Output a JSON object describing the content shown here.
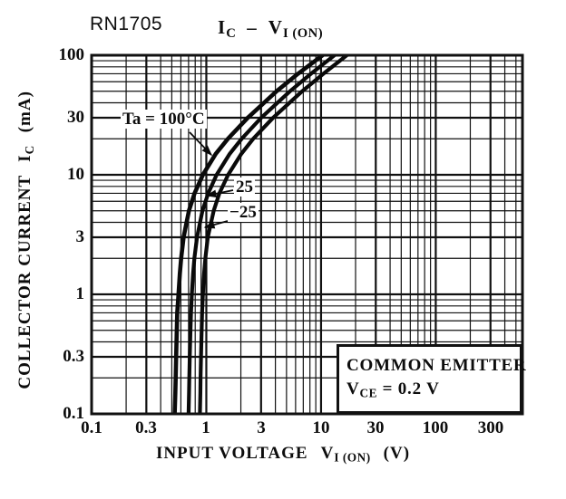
{
  "page": {
    "product_label": "RN1705"
  },
  "title": {
    "p1": "I",
    "p1_sub": "C",
    "dash": "–",
    "p2": "V",
    "p2_sub": "I (ON)"
  },
  "axes": {
    "x": {
      "label_main": "INPUT VOLTAGE",
      "label_sym": "V",
      "label_sym_sub": "I (ON)",
      "label_unit": "(V)",
      "tick_labels": [
        "0.1",
        "0.3",
        "1",
        "3",
        "10",
        "30",
        "100",
        "300"
      ]
    },
    "y": {
      "label_main": "COLLECTOR CURRENT",
      "label_sym": "I",
      "label_sym_sub": "C",
      "label_unit": "(mA)",
      "tick_labels": [
        "100",
        "30",
        "10",
        "3",
        "1",
        "0.3",
        "0.1"
      ]
    }
  },
  "annotations": {
    "ta_label": "Ta = 100°C",
    "t25_label": "25",
    "tm25_label": "−25",
    "box_line1": "COMMON EMITTER",
    "box_sym": "V",
    "box_sym_sub": "CE",
    "box_value": "= 0.2 V"
  },
  "chart_data": {
    "type": "line",
    "title": "IC - VI(ON)",
    "xlabel": "INPUT VOLTAGE VI(ON) (V)",
    "ylabel": "COLLECTOR CURRENT IC (mA)",
    "x_scale": "log",
    "y_scale": "log",
    "xlim": [
      0.1,
      570
    ],
    "ylim": [
      0.1,
      100
    ],
    "x_ticks": [
      0.1,
      0.3,
      1,
      3,
      10,
      30,
      100,
      300
    ],
    "y_ticks": [
      100,
      30,
      10,
      3,
      1,
      0.3,
      0.1
    ],
    "grid": "full log grid, minor lines at 2-9 each decade, labeled lines heavier",
    "legend_position": "inline arrows to curves",
    "conditions": "COMMON EMITTER, VCE = 0.2 V",
    "series": [
      {
        "name": "Ta = 100°C",
        "points_v_i": [
          [
            0.53,
            0.1
          ],
          [
            0.537,
            0.15
          ],
          [
            0.541,
            0.2
          ],
          [
            0.546,
            0.3
          ],
          [
            0.553,
            0.5
          ],
          [
            0.558,
            0.7
          ],
          [
            0.572,
            1
          ],
          [
            0.588,
            1.5
          ],
          [
            0.603,
            2
          ],
          [
            0.634,
            3
          ],
          [
            0.706,
            5
          ],
          [
            0.79,
            7
          ],
          [
            0.934,
            10
          ],
          [
            1.21,
            15
          ],
          [
            1.54,
            20
          ],
          [
            2.3,
            30
          ],
          [
            4.1,
            50
          ],
          [
            6.3,
            70
          ],
          [
            10.3,
            100
          ],
          [
            12.6,
            118
          ]
        ]
      },
      {
        "name": "25",
        "points_v_i": [
          [
            0.7,
            0.1
          ],
          [
            0.707,
            0.15
          ],
          [
            0.711,
            0.2
          ],
          [
            0.717,
            0.3
          ],
          [
            0.728,
            0.5
          ],
          [
            0.736,
            0.7
          ],
          [
            0.748,
            1
          ],
          [
            0.767,
            1.5
          ],
          [
            0.787,
            2
          ],
          [
            0.829,
            3
          ],
          [
            0.926,
            5
          ],
          [
            1.04,
            7
          ],
          [
            1.23,
            10
          ],
          [
            1.6,
            15
          ],
          [
            2.03,
            20
          ],
          [
            3.01,
            30
          ],
          [
            5.37,
            50
          ],
          [
            8.18,
            70
          ],
          [
            13.1,
            100
          ],
          [
            15.3,
            115
          ]
        ]
      },
      {
        "name": "−25",
        "points_v_i": [
          [
            0.88,
            0.1
          ],
          [
            0.887,
            0.15
          ],
          [
            0.891,
            0.2
          ],
          [
            0.898,
            0.3
          ],
          [
            0.91,
            0.5
          ],
          [
            0.919,
            0.7
          ],
          [
            0.933,
            1
          ],
          [
            0.956,
            1.5
          ],
          [
            0.98,
            2
          ],
          [
            1.03,
            3
          ],
          [
            1.16,
            5
          ],
          [
            1.3,
            7
          ],
          [
            1.55,
            10
          ],
          [
            2.02,
            15
          ],
          [
            2.56,
            20
          ],
          [
            3.82,
            30
          ],
          [
            6.86,
            50
          ],
          [
            10.5,
            70
          ],
          [
            16.8,
            100
          ],
          [
            19.0,
            112
          ]
        ]
      }
    ]
  }
}
